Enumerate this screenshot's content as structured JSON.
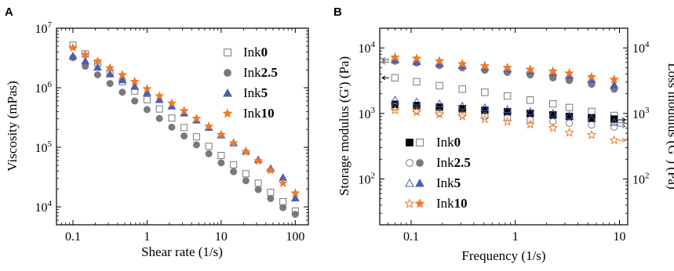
{
  "chart_data": [
    {
      "panel_label": "A",
      "type": "scatter",
      "xlabel": "Shear rate (1/s)",
      "ylabel": "Viscosity (mPas)",
      "x_scale": "log",
      "y_scale": "log",
      "xlim": [
        0.06,
        150
      ],
      "ylim": [
        5000,
        10000000
      ],
      "x_ticks": [
        {
          "value": 0.1,
          "label": "0.1"
        },
        {
          "value": 1,
          "label": "1"
        },
        {
          "value": 10,
          "label": "10"
        },
        {
          "value": 100,
          "label": "100"
        }
      ],
      "y_ticks": [
        {
          "value": 10000,
          "base": "10",
          "exp": "4"
        },
        {
          "value": 100000,
          "base": "10",
          "exp": "5"
        },
        {
          "value": 1000000,
          "base": "10",
          "exp": "6"
        },
        {
          "value": 10000000,
          "base": "10",
          "exp": "7"
        }
      ],
      "grid": false,
      "legend_position": "top-right",
      "x": [
        0.1,
        0.1468,
        0.2154,
        0.3162,
        0.4642,
        0.6813,
        1,
        1.468,
        2.154,
        3.162,
        4.642,
        6.813,
        10,
        14.68,
        21.54,
        31.62,
        46.42,
        68.13,
        100
      ],
      "series": [
        {
          "name_prefix": "Ink",
          "name_bold": "0",
          "marker": "open-square",
          "color": "#7a7a7a",
          "values": [
            5200000,
            3700000,
            2600000,
            1800000,
            1260000,
            880000,
            630000,
            440000,
            310000,
            215000,
            150000,
            104000,
            73000,
            51000,
            36000,
            25000,
            17500,
            12200,
            8500
          ]
        },
        {
          "name_prefix": "Ink",
          "name_bold": "2.5",
          "marker": "filled-circle",
          "color": "#7a7a7a",
          "values": [
            3200000,
            2300000,
            1650000,
            1180000,
            840000,
            600000,
            430000,
            305000,
            218000,
            155000,
            110000,
            78000,
            55000,
            39000,
            27500,
            19500,
            13800,
            9700,
            7500
          ]
        },
        {
          "name_prefix": "Ink",
          "name_bold": "5",
          "marker": "filled-triangle",
          "color": "#4a5fb0",
          "values": [
            3400000,
            2800000,
            2200000,
            1700000,
            1350000,
            1050000,
            820000,
            630000,
            490000,
            375000,
            285000,
            215000,
            160000,
            118000,
            86000,
            62000,
            44000,
            31000,
            14000
          ]
        },
        {
          "name_prefix": "Ink",
          "name_bold": "10",
          "marker": "star",
          "color": "#f07a28",
          "values": [
            4700000,
            3600000,
            2800000,
            2150000,
            1650000,
            1270000,
            960000,
            730000,
            550000,
            410000,
            305000,
            225000,
            163000,
            118000,
            84000,
            59000,
            41000,
            25000,
            17000
          ]
        }
      ]
    },
    {
      "panel_label": "B",
      "type": "scatter",
      "xlabel": "Frequency (1/s)",
      "ylabel": "Storage modulus (G') (Pa)",
      "ylabel_right": "Loss modulus (G'') (Pa)",
      "x_scale": "log",
      "y_scale": "log",
      "xlim": [
        0.05,
        12
      ],
      "ylim": [
        20,
        20000
      ],
      "x_ticks": [
        {
          "value": 0.1,
          "label": "0.1"
        },
        {
          "value": 1,
          "label": "1"
        },
        {
          "value": 10,
          "label": "10"
        }
      ],
      "y_ticks": [
        {
          "value": 100,
          "base": "10",
          "exp": "2"
        },
        {
          "value": 1000,
          "base": "10",
          "exp": "3"
        },
        {
          "value": 10000,
          "base": "10",
          "exp": "4"
        }
      ],
      "y_ticks_right": [
        {
          "value": 100,
          "base": "10",
          "exp": "2"
        },
        {
          "value": 1000,
          "base": "10",
          "exp": "3"
        },
        {
          "value": 10000,
          "base": "10",
          "exp": "4"
        }
      ],
      "grid": false,
      "legend_position": "bottom-left",
      "x": [
        0.0681,
        0.1,
        0.1468,
        0.2154,
        0.3162,
        0.4642,
        0.6813,
        1,
        1.468,
        2.154,
        3.162,
        4.642,
        6.813,
        10
      ],
      "point_x": [
        0.07,
        0.113,
        0.187,
        0.31,
        0.51,
        0.84,
        1.39,
        2.3,
        3.3,
        5.4,
        8.9
      ],
      "series": [
        {
          "name_prefix": "Ink",
          "name_bold": "0",
          "color": "#000000",
          "G_storage": [
            1380,
            1320,
            1250,
            1180,
            1120,
            1060,
            1000,
            950,
            900,
            860,
            820
          ],
          "G_loss": [
            3500,
            3050,
            2650,
            2350,
            2100,
            1850,
            1600,
            1400,
            1230,
            1070,
            930
          ],
          "storage_marker": "filled-square",
          "loss_marker": "open-square",
          "storage_color": "#000000",
          "loss_color": "#7a7a7a"
        },
        {
          "name_prefix": "Ink",
          "name_bold": "2.5",
          "color": "#7a7a7a",
          "G_storage": [
            1250,
            1130,
            1040,
            980,
            920,
            860,
            800,
            750,
            710,
            670,
            620
          ],
          "G_loss": [
            6300,
            5900,
            5400,
            5000,
            4600,
            4250,
            3900,
            3500,
            3200,
            2800,
            2350
          ],
          "storage_marker": "open-circle",
          "loss_marker": "filled-circle",
          "storage_color": "#7a7a7a",
          "loss_color": "#7a7a7a"
        },
        {
          "name_prefix": "Ink",
          "name_bold": "5",
          "color": "#4a5fb0",
          "G_storage": [
            1600,
            1500,
            1400,
            1300,
            1220,
            1150,
            1070,
            1000,
            920,
            830,
            730
          ],
          "G_loss": [
            6600,
            6200,
            5800,
            5400,
            5100,
            4800,
            4500,
            4200,
            3800,
            3300,
            2700
          ],
          "storage_marker": "open-triangle",
          "loss_marker": "filled-triangle",
          "storage_color": "#4a5fb0",
          "loss_color": "#4a5fb0"
        },
        {
          "name_prefix": "Ink",
          "name_bold": "10",
          "color": "#f07a28",
          "G_storage": [
            1120,
            1050,
            970,
            900,
            820,
            750,
            680,
            600,
            510,
            470,
            390
          ],
          "G_loss": [
            7200,
            6900,
            6300,
            5700,
            5300,
            5000,
            4700,
            4400,
            4100,
            3600,
            3300
          ],
          "storage_marker": "open-star",
          "loss_marker": "filled-star",
          "storage_color": "#f07a28",
          "loss_color": "#f07a28"
        }
      ]
    }
  ]
}
